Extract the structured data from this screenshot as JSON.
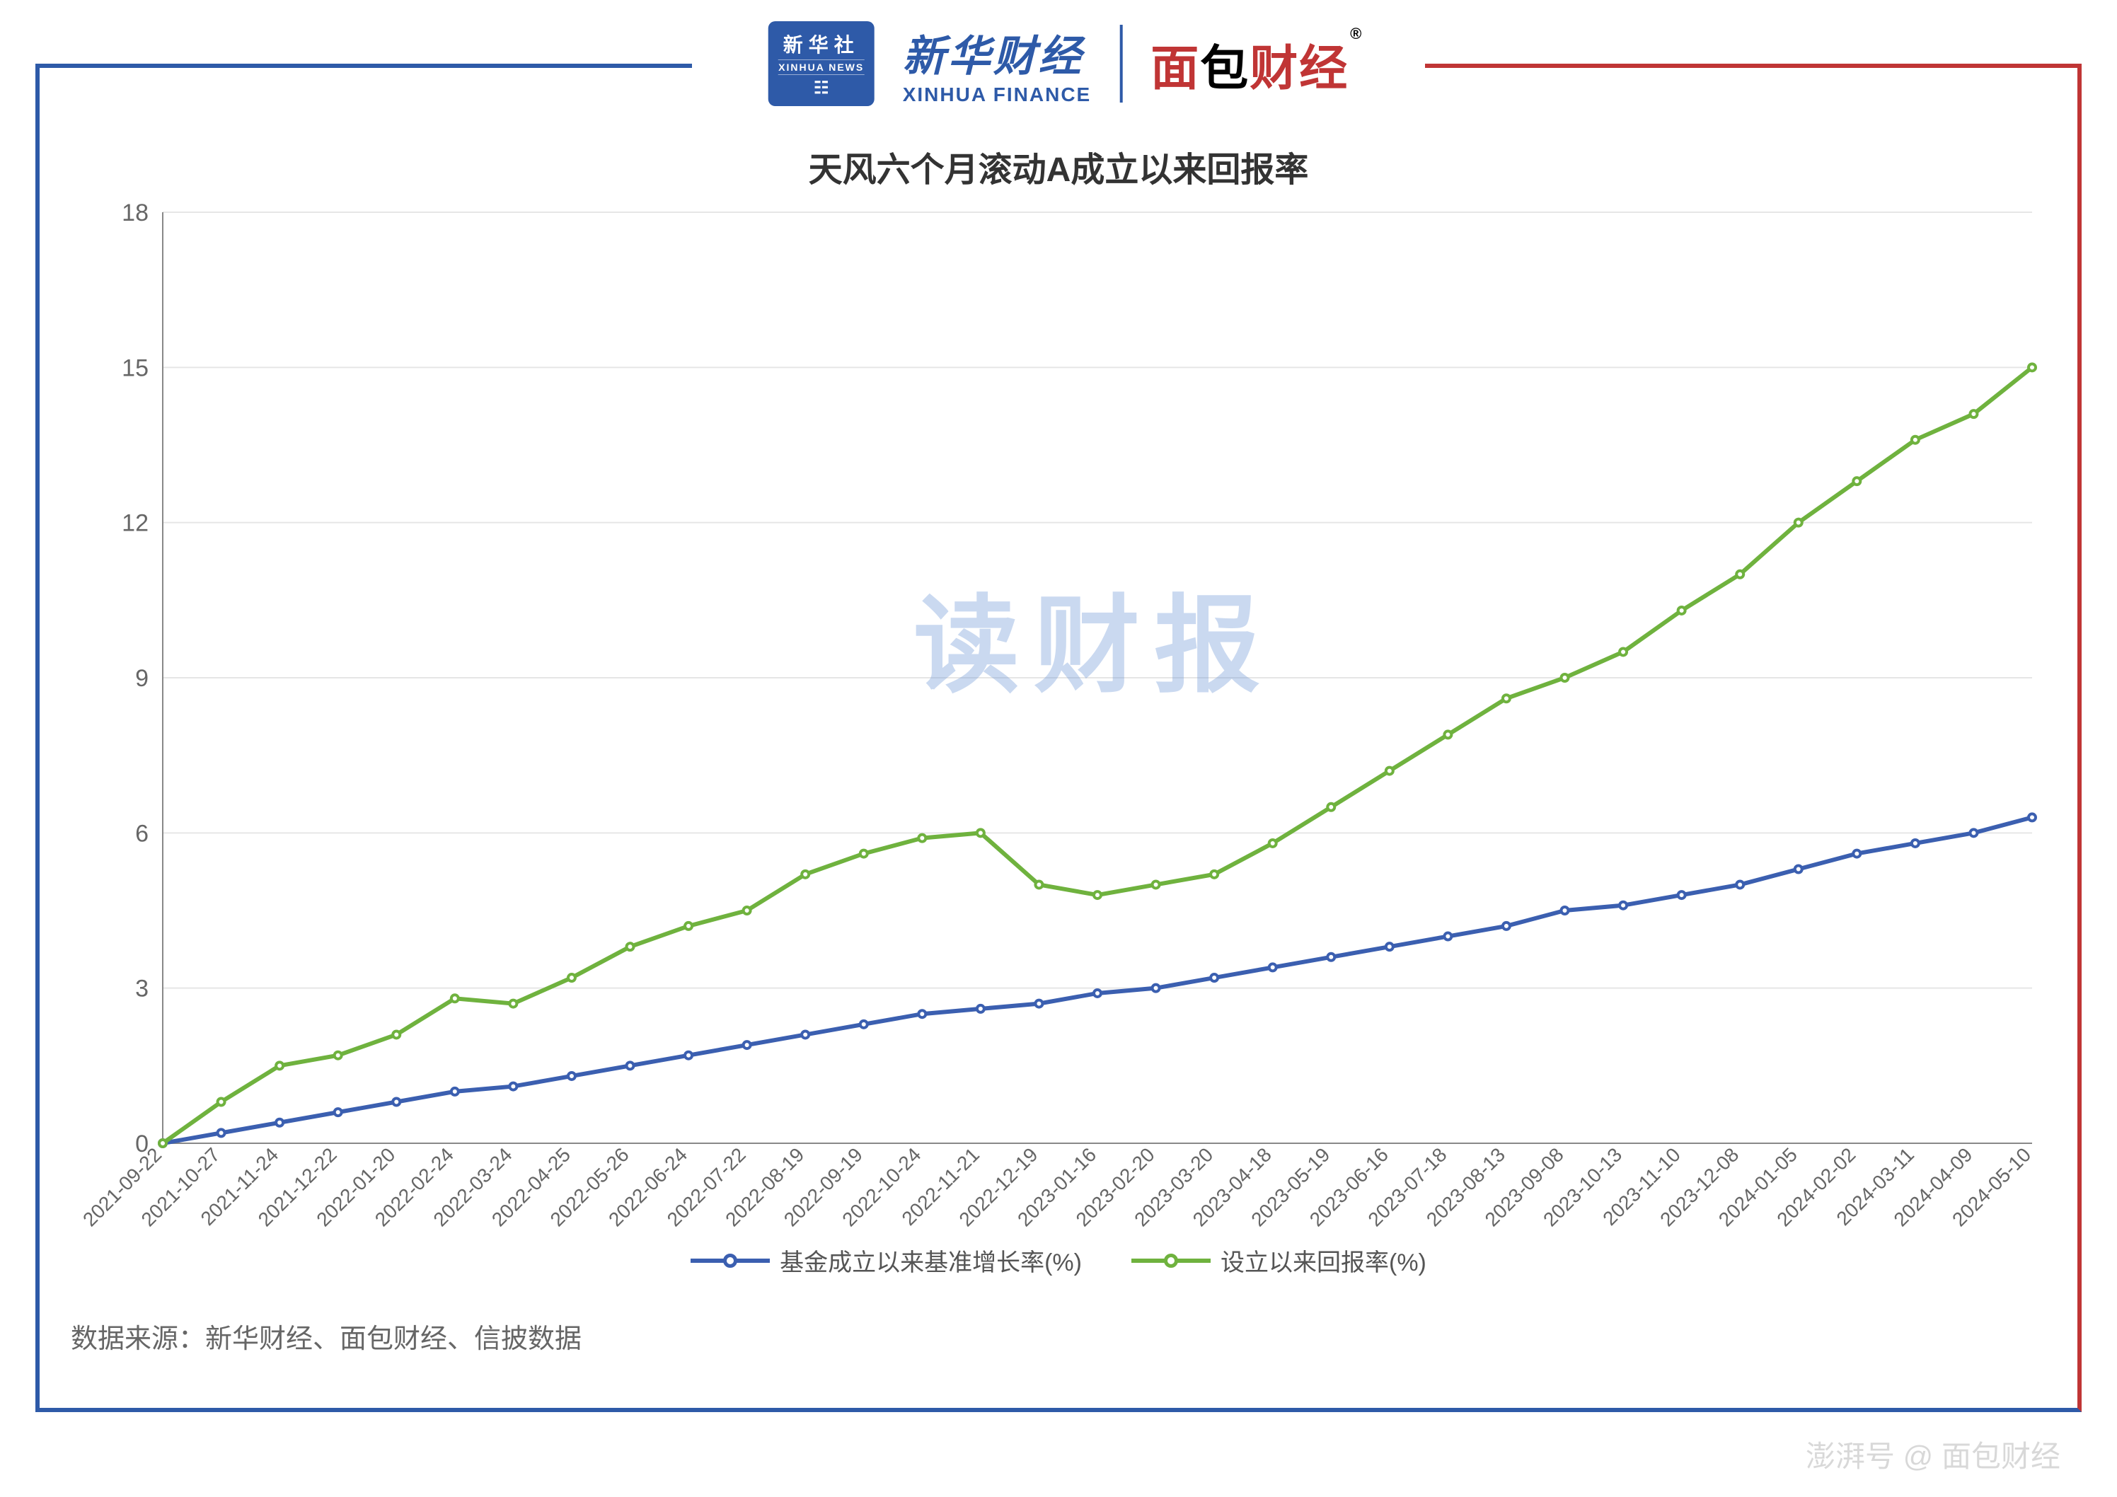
{
  "logos": {
    "xinhua_badge_cn": "新华社",
    "xinhua_badge_en": "XINHUA NEWS",
    "xinhua_badge_icon": "☷",
    "xhf_cn": "新华财经",
    "xhf_en": "XINHUA FINANCE",
    "mbcj_1": "面",
    "mbcj_2": "包",
    "mbcj_3": "财经",
    "registered": "®"
  },
  "chart": {
    "type": "line",
    "title": "天风六个月滚动A成立以来回报率",
    "title_fontsize": 48,
    "background_color": "#ffffff",
    "grid_color": "#e6e6e6",
    "axis_color": "#888888",
    "label_color": "#666666",
    "ylim": [
      0,
      18
    ],
    "yticks": [
      0,
      3,
      6,
      9,
      12,
      15,
      18
    ],
    "ytick_fontsize": 34,
    "xtick_fontsize": 28,
    "xtick_rotation": -45,
    "x_labels": [
      "2021-09-22",
      "2021-10-27",
      "2021-11-24",
      "2021-12-22",
      "2022-01-20",
      "2022-02-24",
      "2022-03-24",
      "2022-04-25",
      "2022-05-26",
      "2022-06-24",
      "2022-07-22",
      "2022-08-19",
      "2022-09-19",
      "2022-10-24",
      "2022-11-21",
      "2022-12-19",
      "2023-01-16",
      "2023-02-20",
      "2023-03-20",
      "2023-04-18",
      "2023-05-19",
      "2023-06-16",
      "2023-07-18",
      "2023-08-13",
      "2023-09-08",
      "2023-10-13",
      "2023-11-10",
      "2023-12-08",
      "2024-01-05",
      "2024-02-02",
      "2024-03-11",
      "2024-04-09",
      "2024-05-10"
    ],
    "series": [
      {
        "name": "基金成立以来基准增长率(%)",
        "color": "#3b5fb0",
        "line_width": 6,
        "marker": "circle",
        "marker_size": 5,
        "values": [
          0,
          0.2,
          0.4,
          0.6,
          0.8,
          1.0,
          1.1,
          1.3,
          1.5,
          1.7,
          1.9,
          2.1,
          2.3,
          2.5,
          2.6,
          2.7,
          2.9,
          3.0,
          3.2,
          3.4,
          3.6,
          3.8,
          4.0,
          4.2,
          4.5,
          4.6,
          4.8,
          5.0,
          5.3,
          5.6,
          5.8,
          6.0,
          6.3
        ]
      },
      {
        "name": "设立以来回报率(%)",
        "color": "#6fb23e",
        "line_width": 6,
        "marker": "circle",
        "marker_size": 5,
        "values": [
          0,
          0.8,
          1.5,
          1.7,
          2.1,
          2.8,
          2.7,
          3.2,
          3.8,
          4.2,
          4.5,
          5.2,
          5.6,
          5.9,
          6.0,
          5.0,
          4.8,
          5.0,
          5.2,
          5.8,
          6.5,
          7.2,
          7.9,
          8.6,
          9.0,
          9.5,
          10.3,
          11.0,
          12.0,
          12.8,
          13.6,
          14.1,
          15.0
        ]
      }
    ],
    "watermark": "读财报",
    "watermark_color": "#6b95d6",
    "watermark_opacity": 0.35,
    "watermark_fontsize": 150,
    "legend_fontsize": 34,
    "frame_left_color": "#2e5aa8",
    "frame_right_color": "#c03535"
  },
  "source_line": "数据来源：新华财经、面包财经、信披数据",
  "footer_watermark": "澎湃号  @ 面包财经"
}
